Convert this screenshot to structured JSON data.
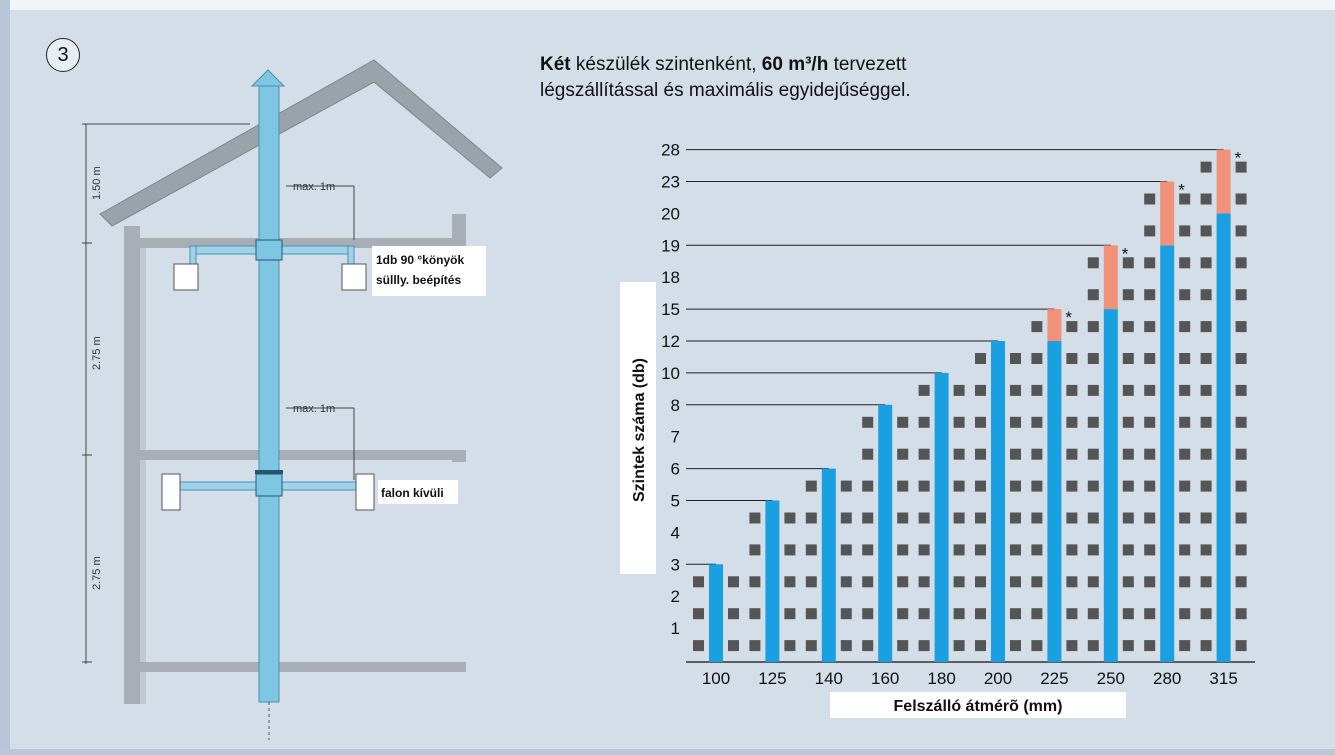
{
  "badge": "3",
  "headline": {
    "part1": "Két",
    "part2": " készülék szintenként, ",
    "part3": "60 m³/h",
    "part4": " tervezett",
    "line2": "légszállítással és maximális egyidejűséggel."
  },
  "diagram": {
    "heights": [
      "1.50 m",
      "2.75 m",
      "2.75 m"
    ],
    "max_labels": [
      "max. 1m",
      "max. 1m"
    ],
    "annotation1_line1": "1db 90 °könyök",
    "annotation1_line2": "süllly. beépítés",
    "annotation2": "falon kívüli",
    "colors": {
      "pipe": "#7fc6e4",
      "wall": "#a7aeb6",
      "roof": "#9aa2ab"
    }
  },
  "chart_data": {
    "type": "bar",
    "xlabel": "Felszálló átmérõ (mm)",
    "ylabel": "Szintek száma (db)",
    "categories": [
      "100",
      "125",
      "140",
      "160",
      "180",
      "200",
      "225",
      "250",
      "280",
      "315"
    ],
    "y_ticks": [
      "1",
      "2",
      "3",
      "4",
      "5",
      "6",
      "7",
      "8",
      "10",
      "12",
      "15",
      "18",
      "19",
      "20",
      "23",
      "28"
    ],
    "axis_note": "The vertical axis is categorical: each y_ticks entry is one equally spaced step.",
    "series": [
      {
        "values": [
          3,
          5,
          6,
          8,
          10,
          12,
          12,
          15,
          19,
          20
        ],
        "color": "#1aa0e1"
      },
      {
        "values": [
          0,
          0,
          0,
          0,
          0,
          0,
          15,
          19,
          23,
          28
        ],
        "color": "#f0917a"
      }
    ],
    "marker": "*",
    "marker_color": "#f0917a"
  }
}
